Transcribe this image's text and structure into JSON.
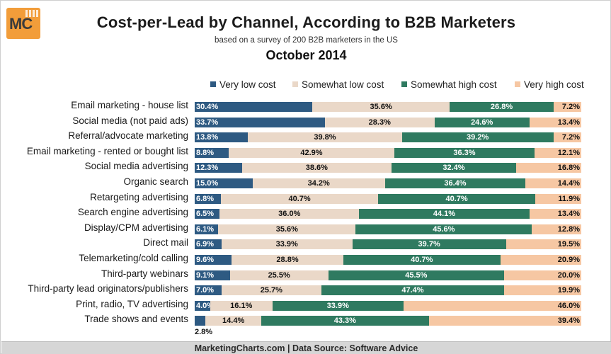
{
  "header": {
    "logo_text": "MC",
    "title": "Cost-per-Lead by Channel, According to B2B Marketers",
    "subtitle": "based on a survey of 200 B2B marketers in the US",
    "date": "October 2014"
  },
  "footer": {
    "source": "MarketingCharts.com | Data Source: Software Advice"
  },
  "colors": {
    "very_low": "#2e5a82",
    "somewhat_low": "#ead8c8",
    "somewhat_high": "#2f7a60",
    "very_high": "#f6c7a3"
  },
  "chart_data": {
    "type": "bar",
    "orientation": "horizontal",
    "stacked": true,
    "title": "Cost-per-Lead by Channel, According to B2B Marketers",
    "subtitle": "based on a survey of 200 B2B marketers in the US",
    "date": "October 2014",
    "legend_position": "top",
    "xlim": [
      0,
      100
    ],
    "grid": false,
    "categories": [
      "Email marketing - house list",
      "Social media (not paid ads)",
      "Referral/advocate marketing",
      "Email marketing - rented or bought list",
      "Social media advertising",
      "Organic search",
      "Retargeting advertising",
      "Search engine advertising",
      "Display/CPM advertising",
      "Direct mail",
      "Telemarketing/cold calling",
      "Third-party webinars",
      "Third-party lead originators/publishers",
      "Print, radio, TV advertising",
      "Trade shows and events"
    ],
    "series": [
      {
        "name": "Very low cost",
        "color": "#2e5a82",
        "values": [
          30.4,
          33.7,
          13.8,
          8.8,
          12.3,
          15.0,
          6.8,
          6.5,
          6.1,
          6.9,
          9.6,
          9.1,
          7.0,
          4.0,
          2.8
        ],
        "labels": [
          "30.4%",
          "33.7%",
          "13.8%",
          "8.8%",
          "12.3%",
          "15.0%",
          "6.8%",
          "6.5%",
          "6.1%",
          "6.9%",
          "9.6%",
          "9.1%",
          "7.0%",
          "4.0%",
          "2.8%"
        ]
      },
      {
        "name": "Somewhat low cost",
        "color": "#ead8c8",
        "values": [
          35.6,
          28.3,
          39.8,
          42.9,
          38.6,
          34.2,
          40.7,
          36.0,
          35.6,
          33.9,
          28.8,
          25.5,
          25.7,
          16.1,
          14.4
        ],
        "labels": [
          "35.6%",
          "28.3%",
          "39.8%",
          "42.9%",
          "38.6%",
          "34.2%",
          "40.7%",
          "36.0%",
          "35.6%",
          "33.9%",
          "28.8%",
          "25.5%",
          "25.7%",
          "16.1%",
          "14.4%"
        ]
      },
      {
        "name": "Somewhat high cost",
        "color": "#2f7a60",
        "values": [
          26.8,
          24.6,
          39.2,
          36.3,
          32.4,
          36.4,
          40.7,
          44.1,
          45.6,
          39.7,
          40.7,
          45.5,
          47.4,
          33.9,
          43.3
        ],
        "labels": [
          "26.8%",
          "24.6%",
          "39.2%",
          "36.3%",
          "32.4%",
          "36.4%",
          "40.7%",
          "44.1%",
          "45.6%",
          "39.7%",
          "40.7%",
          "45.5%",
          "47.4%",
          "33.9%",
          "43.3%"
        ]
      },
      {
        "name": "Very high cost",
        "color": "#f6c7a3",
        "values": [
          7.2,
          13.4,
          7.2,
          12.1,
          16.8,
          14.4,
          11.9,
          13.4,
          12.8,
          19.5,
          20.9,
          20.0,
          19.9,
          46.0,
          39.4
        ],
        "labels": [
          "7.2%",
          "13.4%",
          "7.2%",
          "12.1%",
          "16.8%",
          "14.4%",
          "11.9%",
          "13.4%",
          "12.8%",
          "19.5%",
          "20.9%",
          "20.0%",
          "19.9%",
          "46.0%",
          "39.4%"
        ]
      }
    ]
  }
}
